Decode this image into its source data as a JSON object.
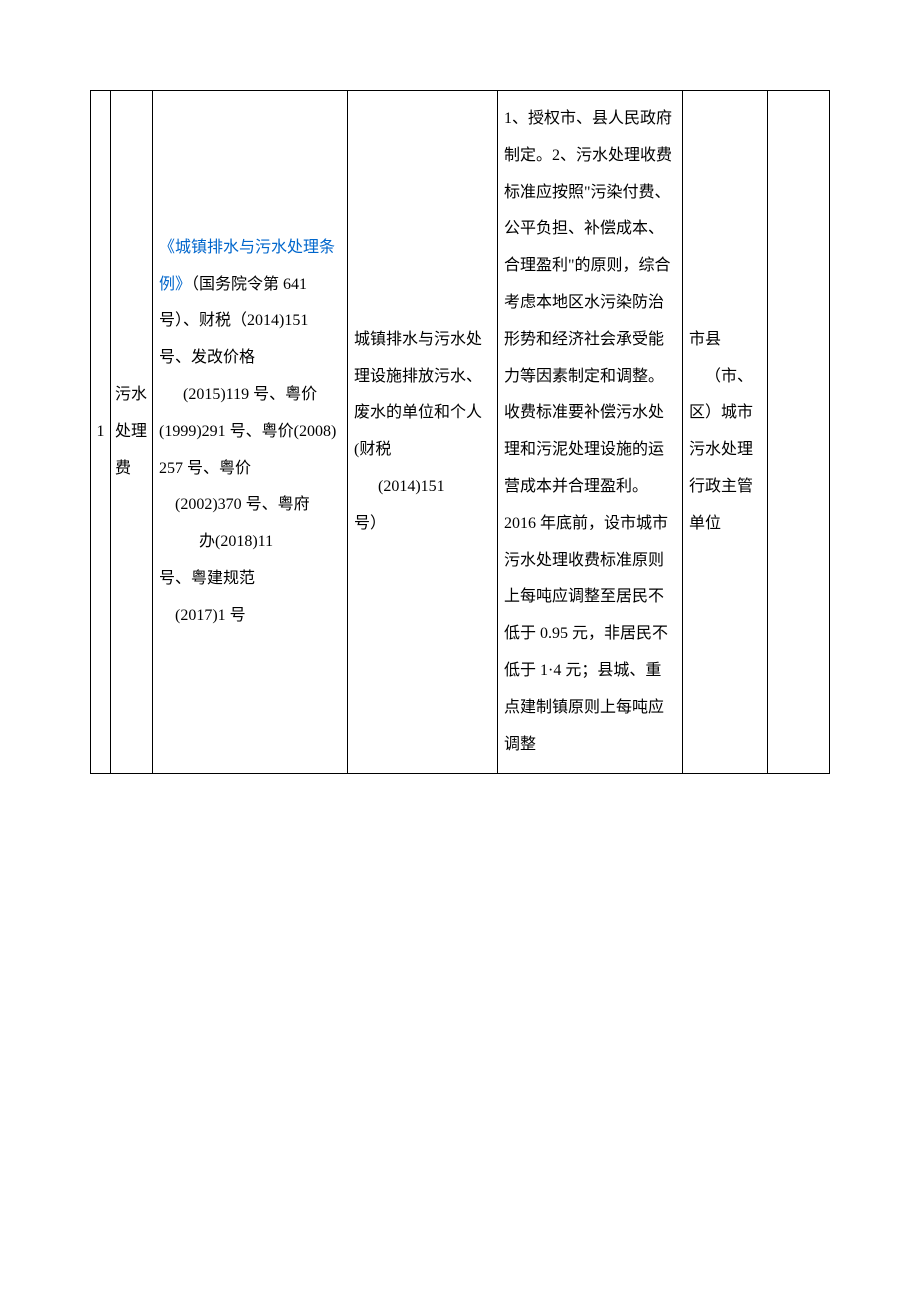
{
  "table": {
    "row": {
      "col1": "1",
      "col2": "污水处理费",
      "col3": {
        "link_text": "《城镇排水与污水处理条例》",
        "text_after_link": "（国务院令第 641 号）、财税（2014)151 号、发改价格",
        "line2": "(2015)119 号、粤价(1999)291 号、粤价(2008)",
        "line3": "257 号、粤价",
        "line4": "(2002)370 号、粤府",
        "line5": "办(2018)11",
        "line6": "号、粤建规范",
        "line7": "(2017)1 号"
      },
      "col4": {
        "text1": "城镇排水与污水处理设施排放污水、废水的单位和个人(财税",
        "text2": "(2014)151",
        "text3": "号）"
      },
      "col5": "1、授权市、县人民政府制定。2、污水处理收费标准应按照\"污染付费、公平负担、补偿成本、合理盈利\"的原则，综合考虑本地区水污染防治形势和经济社会承受能力等因素制定和调整。收费标准要补偿污水处理和污泥处理设施的运营成本并合理盈利。\n2016 年底前，设市城市污水处理收费标准原则上每吨应调整至居民不低于 0.95 元，非居民不低于 1·4 元；县城、重点建制镇原则上每吨应调整",
      "col6": {
        "line1": "市县",
        "line2": "（市、",
        "line3": "区）城市污水处理行政主管单位"
      }
    }
  }
}
